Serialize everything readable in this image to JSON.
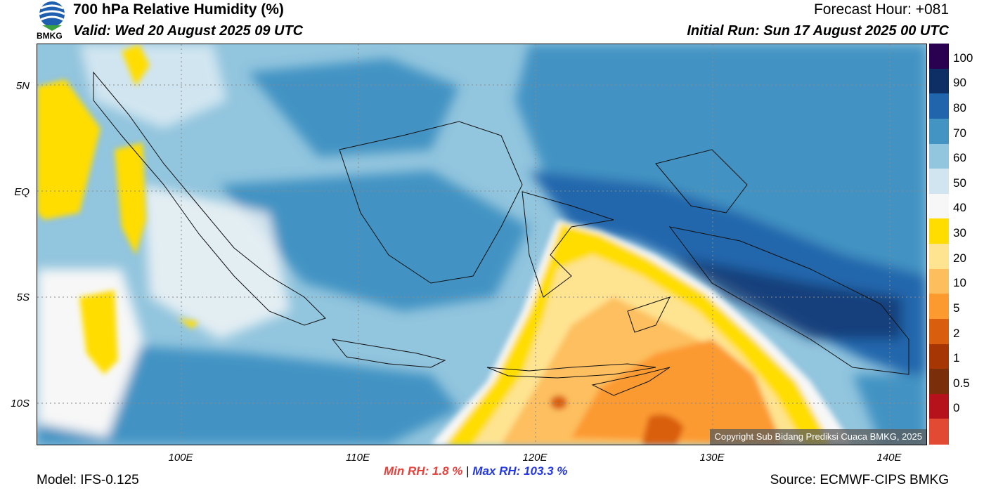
{
  "header": {
    "title": "700 hPa Relative Humidity (%)",
    "valid": "Valid: Wed 20 August 2025 09 UTC",
    "forecast_hour": "Forecast Hour: +081",
    "initial_run": "Initial Run: Sun 17 August 2025 00 UTC"
  },
  "logo": {
    "text": "BMKG",
    "icon": "bmkg-logo-icon"
  },
  "map": {
    "lat_labels": [
      "5N",
      "EQ",
      "5S",
      "10S"
    ],
    "lon_labels": [
      "100E",
      "110E",
      "120E",
      "130E",
      "140E"
    ],
    "copyright": "Copyright Sub Bidang Prediksi Cuaca BMKG, 2025"
  },
  "colorbar": {
    "labels": [
      "100",
      "90",
      "80",
      "70",
      "60",
      "50",
      "40",
      "30",
      "20",
      "10",
      "5",
      "2",
      "1",
      "0.5",
      "0"
    ],
    "colors": [
      "#2a0050",
      "#0d2f66",
      "#2166ac",
      "#4393c3",
      "#92c5de",
      "#d1e5f0",
      "#f7f7f7",
      "#ffdd00",
      "#fee391",
      "#fdbf5e",
      "#fc9a30",
      "#d95f0e",
      "#a63603",
      "#7a2e0a",
      "#b5121b",
      "#e34a33"
    ]
  },
  "stats": {
    "min_rh": "Min RH:   1.8 %",
    "separator": "|",
    "max_rh": "Max RH: 103.3 %"
  },
  "footer": {
    "model": "Model: IFS-0.125",
    "source": "Source: ECMWF-CIPS BMKG"
  }
}
